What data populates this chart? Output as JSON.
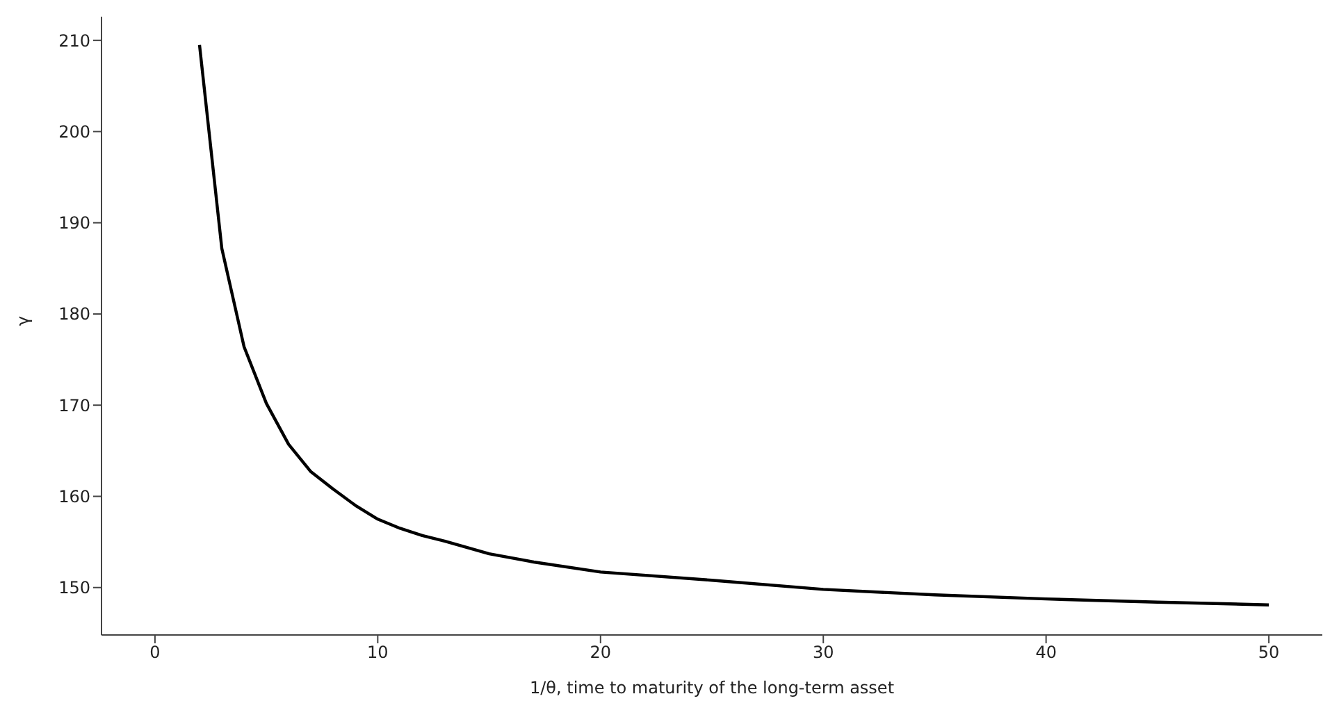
{
  "chart_data": {
    "type": "line",
    "xlabel": "1/θ, time to maturity of the long-term asset",
    "ylabel": "γ",
    "x": [
      2,
      3,
      4,
      5,
      6,
      7,
      8,
      9,
      10,
      11,
      12,
      13,
      15,
      17,
      20,
      25,
      30,
      35,
      40,
      45,
      50
    ],
    "series": [
      {
        "color": "#000000",
        "values": [
          209.5,
          187.2,
          176.4,
          170.2,
          165.7,
          162.7,
          160.8,
          159.0,
          157.5,
          156.5,
          155.7,
          155.1,
          153.7,
          152.8,
          151.7,
          150.8,
          149.8,
          149.2,
          148.75,
          148.4,
          148.1
        ]
      }
    ],
    "xlim": [
      -2.4,
      52.4
    ],
    "xticks": [
      0,
      10,
      20,
      30,
      40,
      50
    ],
    "ylim": [
      144.8,
      212.6
    ],
    "yticks": [
      150,
      160,
      170,
      180,
      190,
      200,
      210
    ],
    "grid": false,
    "legend": false,
    "marker": "none",
    "line_style": "solid"
  }
}
